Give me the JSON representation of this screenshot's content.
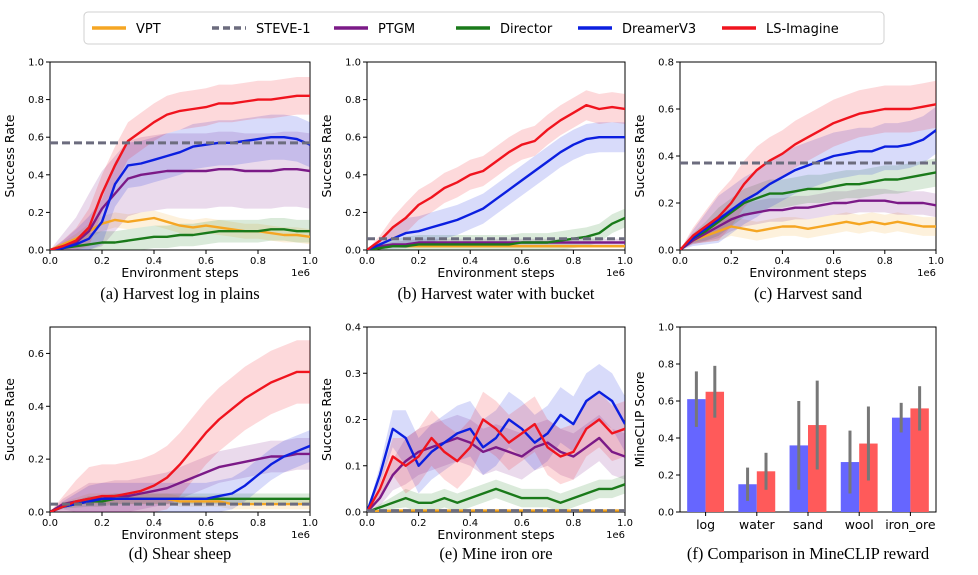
{
  "legend": [
    {
      "name": "VPT",
      "color": "#f5a623",
      "dash": false
    },
    {
      "name": "STEVE-1",
      "color": "#6c6c7e",
      "dash": true
    },
    {
      "name": "PTGM",
      "color": "#7b1a87",
      "dash": false
    },
    {
      "name": "Director",
      "color": "#1a7a1a",
      "dash": false
    },
    {
      "name": "DreamerV3",
      "color": "#0b1fe0",
      "dash": false
    },
    {
      "name": "LS-Imagine",
      "color": "#f0141e",
      "dash": false
    }
  ],
  "chart_data": [
    {
      "type": "line",
      "caption": "(a) Harvest log in plains",
      "xlabel": "Environment steps",
      "ylabel": "Success Rate",
      "x_multiplier": "1e6",
      "xlim": [
        0,
        1.0
      ],
      "ylim": [
        0,
        1.0
      ],
      "xticks": [
        "0.0",
        "0.2",
        "0.4",
        "0.6",
        "0.8",
        "1.0"
      ],
      "yticks": [
        "0.0",
        "0.2",
        "0.4",
        "0.6",
        "0.8",
        "1.0"
      ],
      "x": [
        0,
        0.05,
        0.1,
        0.15,
        0.2,
        0.25,
        0.3,
        0.35,
        0.4,
        0.45,
        0.5,
        0.55,
        0.6,
        0.65,
        0.7,
        0.75,
        0.8,
        0.85,
        0.9,
        0.95,
        1.0
      ],
      "series": [
        {
          "name": "VPT",
          "values": [
            0,
            0.03,
            0.06,
            0.1,
            0.14,
            0.16,
            0.15,
            0.16,
            0.17,
            0.15,
            0.13,
            0.12,
            0.13,
            0.12,
            0.11,
            0.1,
            0.1,
            0.09,
            0.08,
            0.08,
            0.07
          ],
          "band": 0.04
        },
        {
          "name": "STEVE-1",
          "hline": 0.57
        },
        {
          "name": "PTGM",
          "values": [
            0,
            0.02,
            0.04,
            0.1,
            0.22,
            0.3,
            0.38,
            0.4,
            0.41,
            0.42,
            0.42,
            0.42,
            0.42,
            0.43,
            0.43,
            0.42,
            0.42,
            0.42,
            0.43,
            0.43,
            0.42
          ],
          "band": 0.2
        },
        {
          "name": "Director",
          "values": [
            0,
            0.01,
            0.02,
            0.03,
            0.04,
            0.04,
            0.05,
            0.06,
            0.07,
            0.07,
            0.08,
            0.08,
            0.09,
            0.1,
            0.1,
            0.1,
            0.1,
            0.11,
            0.11,
            0.1,
            0.1
          ],
          "band": 0.06
        },
        {
          "name": "DreamerV3",
          "values": [
            0,
            0.01,
            0.03,
            0.06,
            0.15,
            0.35,
            0.45,
            0.46,
            0.48,
            0.5,
            0.52,
            0.55,
            0.56,
            0.57,
            0.57,
            0.58,
            0.59,
            0.6,
            0.6,
            0.59,
            0.56
          ],
          "band": 0.12
        },
        {
          "name": "LS-Imagine",
          "values": [
            0,
            0.02,
            0.05,
            0.12,
            0.3,
            0.45,
            0.58,
            0.63,
            0.68,
            0.72,
            0.74,
            0.75,
            0.76,
            0.78,
            0.78,
            0.79,
            0.8,
            0.8,
            0.81,
            0.82,
            0.82
          ],
          "band": 0.1
        }
      ]
    },
    {
      "type": "line",
      "caption": "(b) Harvest water with bucket",
      "xlabel": "Environment steps",
      "ylabel": "Success Rate",
      "x_multiplier": "1e6",
      "xlim": [
        0,
        1.0
      ],
      "ylim": [
        0,
        1.0
      ],
      "xticks": [
        "0.0",
        "0.2",
        "0.4",
        "0.6",
        "0.8",
        "1.0"
      ],
      "yticks": [
        "0.0",
        "0.2",
        "0.4",
        "0.6",
        "0.8",
        "1.0"
      ],
      "x": [
        0,
        0.05,
        0.1,
        0.15,
        0.2,
        0.25,
        0.3,
        0.35,
        0.4,
        0.45,
        0.5,
        0.55,
        0.6,
        0.65,
        0.7,
        0.75,
        0.8,
        0.85,
        0.9,
        0.95,
        1.0
      ],
      "series": [
        {
          "name": "VPT",
          "values": [
            0,
            0.01,
            0.02,
            0.02,
            0.02,
            0.02,
            0.02,
            0.02,
            0.02,
            0.02,
            0.02,
            0.02,
            0.02,
            0.02,
            0.02,
            0.02,
            0.02,
            0.02,
            0.02,
            0.02,
            0.02
          ],
          "band": 0.01
        },
        {
          "name": "STEVE-1",
          "hline": 0.06
        },
        {
          "name": "PTGM",
          "values": [
            0,
            0.02,
            0.03,
            0.03,
            0.04,
            0.04,
            0.04,
            0.04,
            0.04,
            0.04,
            0.04,
            0.04,
            0.04,
            0.04,
            0.04,
            0.04,
            0.04,
            0.04,
            0.04,
            0.04,
            0.04
          ],
          "band": 0.02
        },
        {
          "name": "Director",
          "values": [
            0,
            0.01,
            0.02,
            0.02,
            0.03,
            0.03,
            0.03,
            0.03,
            0.03,
            0.03,
            0.03,
            0.03,
            0.04,
            0.04,
            0.04,
            0.05,
            0.06,
            0.07,
            0.09,
            0.14,
            0.17
          ],
          "band": 0.05
        },
        {
          "name": "DreamerV3",
          "values": [
            0,
            0.03,
            0.06,
            0.09,
            0.1,
            0.12,
            0.14,
            0.16,
            0.19,
            0.22,
            0.27,
            0.32,
            0.37,
            0.42,
            0.47,
            0.52,
            0.56,
            0.59,
            0.6,
            0.6,
            0.6
          ],
          "band": 0.08
        },
        {
          "name": "LS-Imagine",
          "values": [
            0,
            0.05,
            0.12,
            0.17,
            0.24,
            0.28,
            0.33,
            0.36,
            0.4,
            0.42,
            0.47,
            0.52,
            0.56,
            0.58,
            0.64,
            0.69,
            0.73,
            0.77,
            0.75,
            0.76,
            0.75
          ],
          "band": 0.08
        }
      ]
    },
    {
      "type": "line",
      "caption": "(c) Harvest sand",
      "xlabel": "Environment steps",
      "ylabel": "Success Rate",
      "x_multiplier": "1e6",
      "xlim": [
        0,
        1.0
      ],
      "ylim": [
        0,
        0.8
      ],
      "xticks": [
        "0.0",
        "0.2",
        "0.4",
        "0.6",
        "0.8",
        "1.0"
      ],
      "yticks": [
        "0.0",
        "0.2",
        "0.4",
        "0.6",
        "0.8"
      ],
      "x": [
        0,
        0.05,
        0.1,
        0.15,
        0.2,
        0.25,
        0.3,
        0.35,
        0.4,
        0.45,
        0.5,
        0.55,
        0.6,
        0.65,
        0.7,
        0.75,
        0.8,
        0.85,
        0.9,
        0.95,
        1.0
      ],
      "series": [
        {
          "name": "VPT",
          "values": [
            0,
            0.04,
            0.06,
            0.08,
            0.1,
            0.09,
            0.08,
            0.09,
            0.1,
            0.1,
            0.09,
            0.1,
            0.11,
            0.12,
            0.11,
            0.12,
            0.11,
            0.12,
            0.11,
            0.1,
            0.1
          ],
          "band": 0.04
        },
        {
          "name": "STEVE-1",
          "hline": 0.37
        },
        {
          "name": "PTGM",
          "values": [
            0,
            0.04,
            0.07,
            0.1,
            0.13,
            0.15,
            0.16,
            0.17,
            0.17,
            0.18,
            0.18,
            0.19,
            0.2,
            0.2,
            0.21,
            0.21,
            0.21,
            0.2,
            0.2,
            0.2,
            0.19
          ],
          "band": 0.05
        },
        {
          "name": "Director",
          "values": [
            0,
            0.05,
            0.08,
            0.12,
            0.16,
            0.2,
            0.22,
            0.24,
            0.24,
            0.25,
            0.26,
            0.26,
            0.27,
            0.28,
            0.28,
            0.29,
            0.3,
            0.3,
            0.31,
            0.32,
            0.33
          ],
          "band": 0.06
        },
        {
          "name": "DreamerV3",
          "values": [
            0,
            0.05,
            0.09,
            0.13,
            0.17,
            0.21,
            0.24,
            0.28,
            0.31,
            0.34,
            0.36,
            0.38,
            0.4,
            0.41,
            0.42,
            0.42,
            0.44,
            0.44,
            0.45,
            0.47,
            0.51
          ],
          "band": 0.1
        },
        {
          "name": "LS-Imagine",
          "values": [
            0,
            0.06,
            0.1,
            0.14,
            0.2,
            0.28,
            0.34,
            0.38,
            0.41,
            0.45,
            0.48,
            0.51,
            0.54,
            0.56,
            0.58,
            0.59,
            0.6,
            0.6,
            0.6,
            0.61,
            0.62
          ],
          "band": 0.1
        }
      ]
    },
    {
      "type": "line",
      "caption": "(d) Shear sheep",
      "xlabel": "Environment steps",
      "ylabel": "Success Rate",
      "x_multiplier": "1e6",
      "xlim": [
        0,
        1.0
      ],
      "ylim": [
        0,
        0.7
      ],
      "xticks": [
        "0.0",
        "0.2",
        "0.4",
        "0.6",
        "0.8",
        "1.0"
      ],
      "yticks": [
        "0.0",
        "0.2",
        "0.4",
        "0.6"
      ],
      "x": [
        0,
        0.05,
        0.1,
        0.15,
        0.2,
        0.25,
        0.3,
        0.35,
        0.4,
        0.45,
        0.5,
        0.55,
        0.6,
        0.65,
        0.7,
        0.75,
        0.8,
        0.85,
        0.9,
        0.95,
        1.0
      ],
      "series": [
        {
          "name": "VPT",
          "values": [
            0,
            0.03,
            0.04,
            0.05,
            0.05,
            0.05,
            0.05,
            0.05,
            0.05,
            0.05,
            0.04,
            0.04,
            0.04,
            0.04,
            0.03,
            0.03,
            0.03,
            0.03,
            0.03,
            0.03,
            0.03
          ],
          "band": 0.02
        },
        {
          "name": "STEVE-1",
          "hline": 0.03
        },
        {
          "name": "PTGM",
          "values": [
            0,
            0.03,
            0.04,
            0.05,
            0.05,
            0.06,
            0.06,
            0.07,
            0.08,
            0.09,
            0.11,
            0.13,
            0.15,
            0.17,
            0.18,
            0.19,
            0.2,
            0.21,
            0.21,
            0.22,
            0.22
          ],
          "band": 0.06
        },
        {
          "name": "Director",
          "values": [
            0,
            0.02,
            0.03,
            0.04,
            0.04,
            0.05,
            0.05,
            0.05,
            0.05,
            0.05,
            0.05,
            0.05,
            0.05,
            0.05,
            0.05,
            0.05,
            0.05,
            0.05,
            0.05,
            0.05,
            0.05
          ],
          "band": 0.02
        },
        {
          "name": "DreamerV3",
          "values": [
            0,
            0.02,
            0.03,
            0.04,
            0.05,
            0.05,
            0.05,
            0.05,
            0.05,
            0.05,
            0.05,
            0.05,
            0.05,
            0.06,
            0.07,
            0.1,
            0.14,
            0.18,
            0.21,
            0.23,
            0.25
          ],
          "band": 0.06
        },
        {
          "name": "LS-Imagine",
          "values": [
            0,
            0.02,
            0.04,
            0.05,
            0.06,
            0.06,
            0.07,
            0.08,
            0.1,
            0.13,
            0.18,
            0.24,
            0.3,
            0.35,
            0.39,
            0.43,
            0.46,
            0.49,
            0.51,
            0.53,
            0.53
          ],
          "band": 0.12
        }
      ]
    },
    {
      "type": "line",
      "caption": "(e) Mine iron ore",
      "xlabel": "Environment steps",
      "ylabel": "Success Rate",
      "x_multiplier": "1e6",
      "xlim": [
        0,
        1.0
      ],
      "ylim": [
        0,
        0.4
      ],
      "xticks": [
        "0.0",
        "0.2",
        "0.4",
        "0.6",
        "0.8",
        "1.0"
      ],
      "yticks": [
        "0.0",
        "0.1",
        "0.2",
        "0.3",
        "0.4"
      ],
      "x": [
        0,
        0.05,
        0.1,
        0.15,
        0.2,
        0.25,
        0.3,
        0.35,
        0.4,
        0.45,
        0.5,
        0.55,
        0.6,
        0.65,
        0.7,
        0.75,
        0.8,
        0.85,
        0.9,
        0.95,
        1.0
      ],
      "series": [
        {
          "name": "VPT",
          "values": [
            0,
            0.002,
            0.003,
            0.003,
            0.003,
            0.003,
            0.003,
            0.003,
            0.003,
            0.003,
            0.003,
            0.003,
            0.003,
            0.003,
            0.003,
            0.003,
            0.003,
            0.003,
            0.003,
            0.003,
            0.003
          ],
          "band": 0.003
        },
        {
          "name": "STEVE-1",
          "hline": 0.003
        },
        {
          "name": "PTGM",
          "values": [
            0,
            0.03,
            0.08,
            0.11,
            0.13,
            0.14,
            0.15,
            0.16,
            0.15,
            0.13,
            0.14,
            0.13,
            0.12,
            0.14,
            0.15,
            0.13,
            0.12,
            0.14,
            0.16,
            0.13,
            0.12
          ],
          "band": 0.05
        },
        {
          "name": "Director",
          "values": [
            0,
            0.01,
            0.02,
            0.03,
            0.02,
            0.02,
            0.03,
            0.02,
            0.03,
            0.04,
            0.05,
            0.04,
            0.03,
            0.03,
            0.03,
            0.02,
            0.03,
            0.04,
            0.05,
            0.05,
            0.06
          ],
          "band": 0.02
        },
        {
          "name": "DreamerV3",
          "values": [
            0,
            0.08,
            0.18,
            0.16,
            0.1,
            0.13,
            0.15,
            0.17,
            0.18,
            0.14,
            0.16,
            0.2,
            0.18,
            0.15,
            0.17,
            0.21,
            0.19,
            0.24,
            0.26,
            0.24,
            0.19
          ],
          "band": 0.06
        },
        {
          "name": "LS-Imagine",
          "values": [
            0,
            0.05,
            0.12,
            0.1,
            0.12,
            0.16,
            0.13,
            0.11,
            0.14,
            0.2,
            0.18,
            0.15,
            0.17,
            0.19,
            0.14,
            0.12,
            0.13,
            0.18,
            0.2,
            0.17,
            0.18
          ],
          "band": 0.06
        }
      ]
    },
    {
      "type": "bar",
      "caption": "(f) Comparison in MineCLIP reward",
      "ylabel": "MineCLIP Score",
      "ylim": [
        0,
        1.0
      ],
      "yticks": [
        "0.0",
        "0.2",
        "0.4",
        "0.6",
        "0.8",
        "1.0"
      ],
      "categories": [
        "log",
        "water",
        "sand",
        "wool",
        "iron_ore"
      ],
      "series": [
        {
          "color": "#6666ff",
          "values": [
            0.61,
            0.15,
            0.36,
            0.27,
            0.51
          ],
          "err": [
            0.15,
            0.09,
            0.24,
            0.17,
            0.08
          ]
        },
        {
          "color": "#ff5a5a",
          "values": [
            0.65,
            0.22,
            0.47,
            0.37,
            0.56
          ],
          "err": [
            0.14,
            0.1,
            0.24,
            0.2,
            0.12
          ]
        }
      ]
    }
  ]
}
